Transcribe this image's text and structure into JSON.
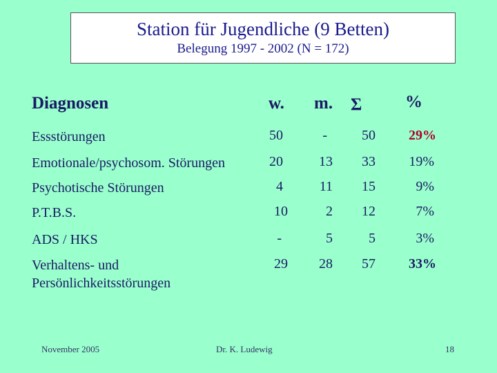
{
  "slide": {
    "title": "Station für Jugendliche (9 Betten)",
    "subtitle": "Belegung  1997 - 2002   (N = 172)"
  },
  "table": {
    "headers": {
      "diagnosis": "Diagnosen",
      "female": "w.",
      "male": "m.",
      "sum": "Σ",
      "percent": "%"
    },
    "rows": [
      {
        "label": "Essstörungen",
        "w": "50",
        "m": "-",
        "sum": "50",
        "pct": "29%"
      },
      {
        "label": "Emotionale/psychosom. Störungen",
        "w": "20",
        "m": "13",
        "sum": "33",
        "pct": "19%"
      },
      {
        "label": "Psychotische Störungen",
        "w": "4",
        "m": "11",
        "sum": "15",
        "pct": "9%"
      },
      {
        "label": "P.T.B.S.",
        "w": "10",
        "m": "2",
        "sum": "12",
        "pct": "7%"
      },
      {
        "label": "ADS / HKS",
        "w": "-",
        "m": "5",
        "sum": "5",
        "pct": "3%"
      },
      {
        "label_line1": "Verhaltens- und",
        "label_line2": "Persönlichkeitsstörungen",
        "w": "29",
        "m": "28",
        "sum": "57",
        "pct": "33%"
      }
    ],
    "highlight_color": "#b3002d"
  },
  "footer": {
    "date": "November 2005",
    "author": "Dr. K. Ludewig",
    "page": "18"
  }
}
